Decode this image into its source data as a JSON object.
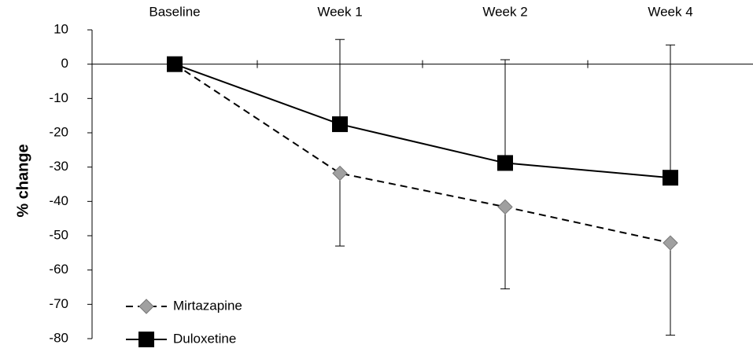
{
  "chart_data": {
    "type": "line",
    "y_label": "% change",
    "categories": [
      "Baseline",
      "Week 1",
      "Week 2",
      "Week 4"
    ],
    "series": [
      {
        "name": "Mirtazapine",
        "color": "#000000",
        "marker_color": "#a0a0a0",
        "marker": "diamond",
        "dashed": true,
        "error_side": "lower",
        "values": [
          0,
          -31.8,
          -41.6,
          -52.1
        ],
        "errors": [
          null,
          21.2,
          23.9,
          26.9
        ]
      },
      {
        "name": "Duloxetine",
        "color": "#000000",
        "marker_color": "#000000",
        "marker": "square",
        "dashed": false,
        "error_side": "upper",
        "values": [
          0,
          -17.5,
          -28.8,
          -33.1
        ],
        "errors": [
          null,
          24.7,
          30.1,
          38.7
        ]
      }
    ],
    "ylim": [
      -80,
      10
    ],
    "yticks": [
      -80,
      -70,
      -60,
      -50,
      -40,
      -30,
      -20,
      -10,
      0,
      10
    ],
    "grid": false
  }
}
